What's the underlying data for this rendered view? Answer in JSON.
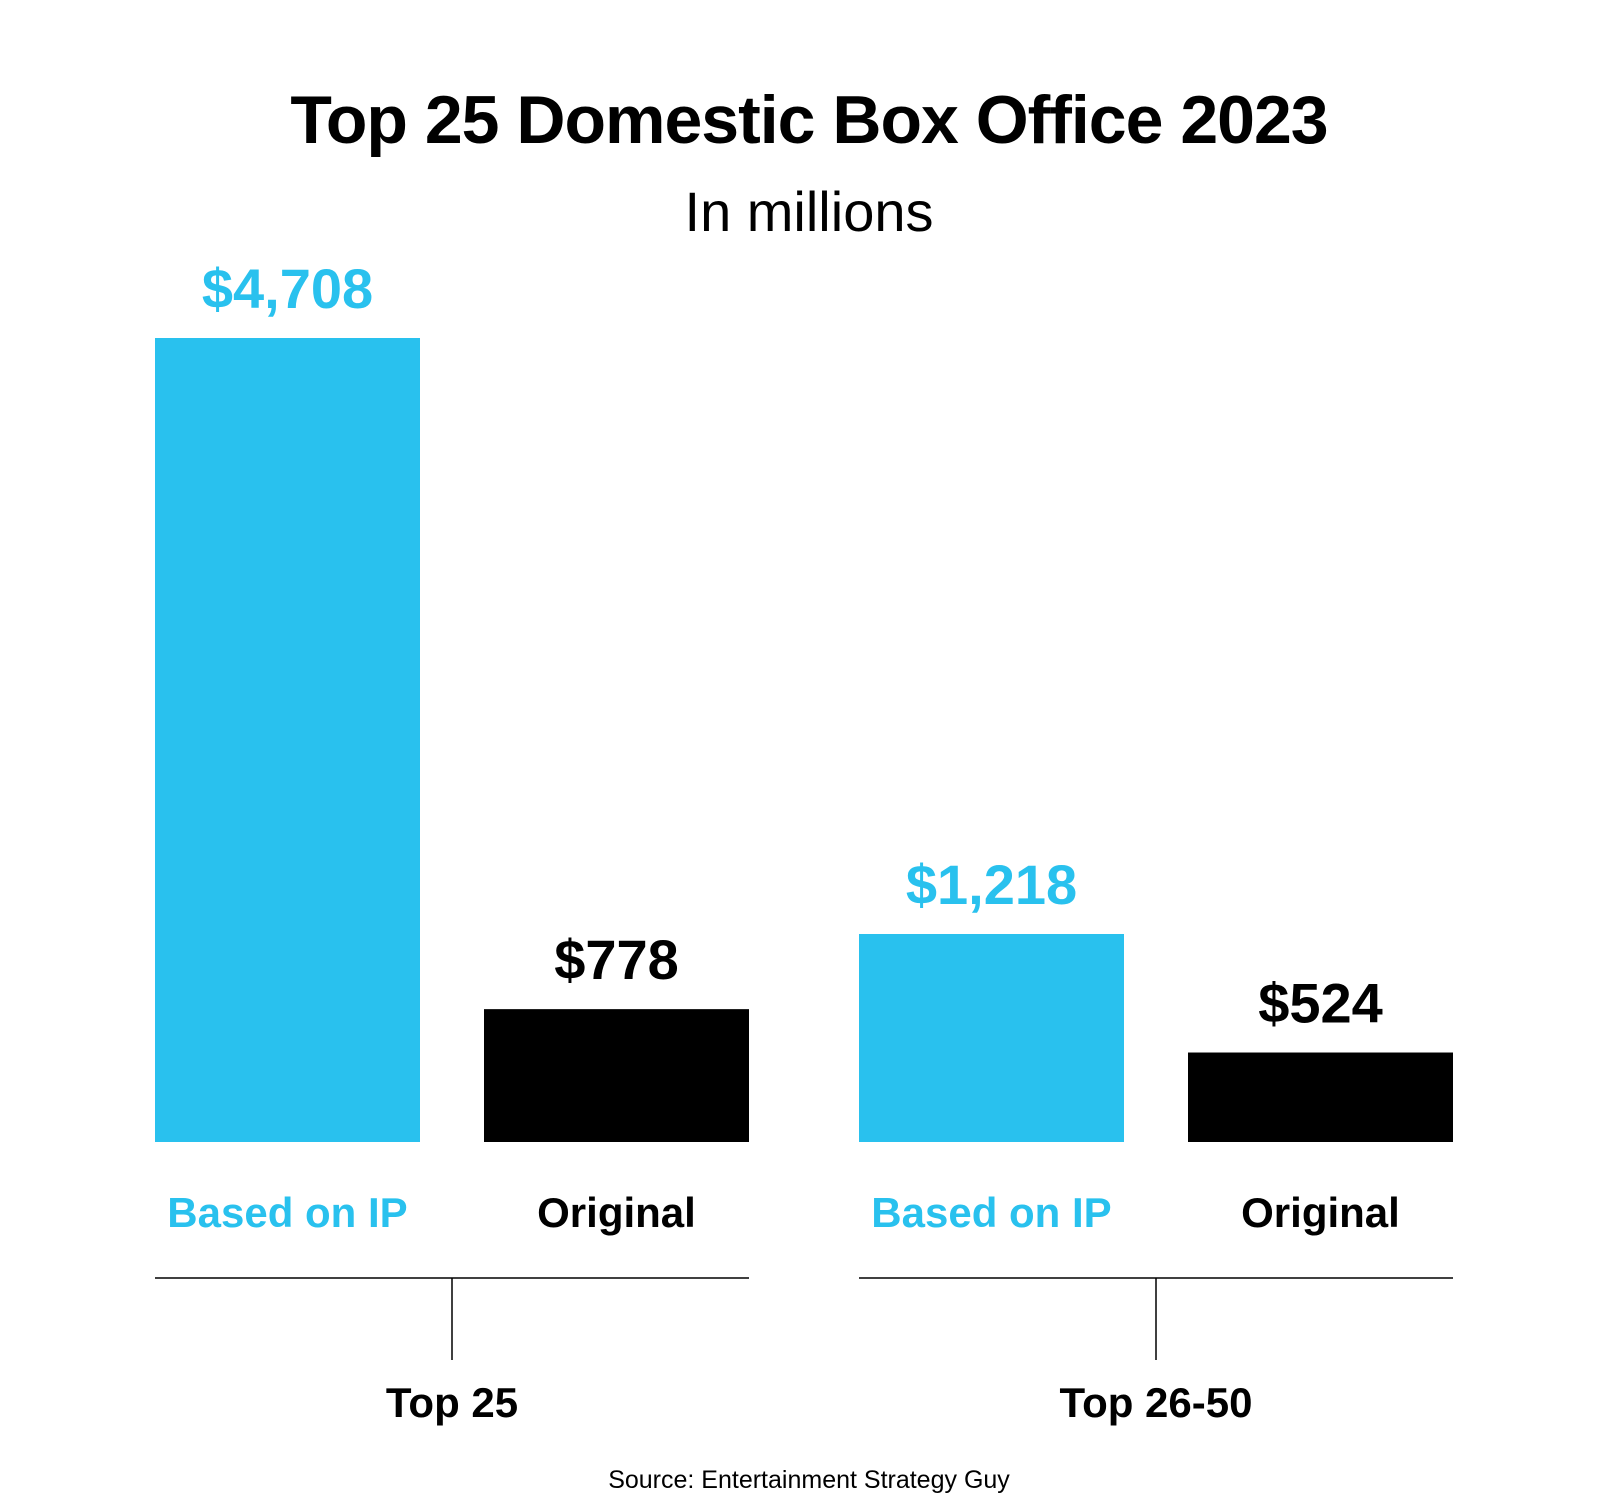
{
  "title": "Top 25 Domestic Box Office 2023",
  "subtitle": "In millions",
  "source": "Source: Entertainment Strategy Guy",
  "colors": {
    "ip": "#29c1ee",
    "original": "#000000",
    "axis": "#000000"
  },
  "chart_data": {
    "type": "bar",
    "title": "Top 25 Domestic Box Office 2023",
    "subtitle": "In millions",
    "groups": [
      {
        "name": "Top 25",
        "bars": [
          {
            "category": "Based on IP",
            "value": 4708,
            "label": "$4,708",
            "color": "#29c1ee"
          },
          {
            "category": "Original",
            "value": 778,
            "label": "$778",
            "color": "#000000"
          }
        ]
      },
      {
        "name": "Top 26-50",
        "bars": [
          {
            "category": "Based on IP",
            "value": 1218,
            "label": "$1,218",
            "color": "#29c1ee"
          },
          {
            "category": "Original",
            "value": 524,
            "label": "$524",
            "color": "#000000"
          }
        ]
      }
    ],
    "ylim": [
      0,
      4708
    ],
    "grid": false,
    "legend": "none"
  }
}
